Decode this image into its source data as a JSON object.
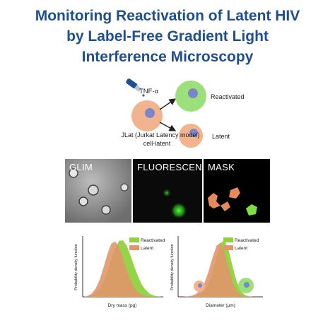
{
  "title": {
    "line1": "Monitoring Reactivation of Latent HIV",
    "line2": "by Label-Free Gradient Light",
    "line3": "Interference Microscopy"
  },
  "schematic": {
    "drug_label": "TNF-α",
    "cell_label_line1": "JLat (Jurkat Latency model)",
    "cell_label_line2": "cell-latent",
    "outcome_reactivated": "Reactivated",
    "outcome_latent": "Latent"
  },
  "panels": [
    {
      "label": "GLIM"
    },
    {
      "label": "FLUORESCENCE"
    },
    {
      "label": "MASK"
    }
  ],
  "colors": {
    "title": "#1f4f8f",
    "reactivated": "#8fd13f",
    "latent": "#e0966a",
    "nucleus": "#7b86c9"
  },
  "chart_data": [
    {
      "type": "area",
      "title": "",
      "xlabel": "Dry mass (pg)",
      "ylabel": "Probability density function",
      "legend_position": "top-right",
      "legend": [
        "Reactivated",
        "Latent"
      ],
      "series": [
        {
          "name": "Reactivated",
          "x": [
            0,
            1,
            2,
            3,
            4,
            5,
            6,
            7,
            8,
            9,
            10,
            11,
            12,
            13,
            14,
            15,
            16,
            17,
            18,
            19,
            20
          ],
          "y": [
            0.0,
            0.01,
            0.03,
            0.07,
            0.14,
            0.26,
            0.44,
            0.66,
            0.86,
            0.99,
            1.0,
            0.9,
            0.72,
            0.52,
            0.34,
            0.2,
            0.11,
            0.05,
            0.02,
            0.01,
            0.0
          ]
        },
        {
          "name": "Latent",
          "x": [
            0,
            1,
            2,
            3,
            4,
            5,
            6,
            7,
            8,
            9,
            10,
            11,
            12,
            13,
            14,
            15,
            16,
            17,
            18,
            19,
            20
          ],
          "y": [
            0.0,
            0.02,
            0.06,
            0.15,
            0.3,
            0.52,
            0.76,
            0.94,
            0.98,
            0.88,
            0.68,
            0.46,
            0.28,
            0.15,
            0.07,
            0.03,
            0.01,
            0.0,
            0.0,
            0.0,
            0.0
          ]
        }
      ]
    },
    {
      "type": "area",
      "title": "",
      "xlabel": "Diameter (µm)",
      "ylabel": "Probability density function",
      "legend_position": "top-right",
      "legend": [
        "Reactivated",
        "Latent"
      ],
      "series": [
        {
          "name": "Reactivated",
          "x": [
            0,
            1,
            2,
            3,
            4,
            5,
            6,
            7,
            8,
            9,
            10,
            11,
            12,
            13,
            14,
            15,
            16,
            17,
            18,
            19,
            20
          ],
          "y": [
            0.0,
            0.0,
            0.0,
            0.01,
            0.02,
            0.05,
            0.11,
            0.22,
            0.42,
            0.7,
            0.95,
            1.0,
            0.82,
            0.52,
            0.26,
            0.1,
            0.03,
            0.01,
            0.0,
            0.0,
            0.0
          ]
        },
        {
          "name": "Latent",
          "x": [
            0,
            1,
            2,
            3,
            4,
            5,
            6,
            7,
            8,
            9,
            10,
            11,
            12,
            13,
            14,
            15,
            16,
            17,
            18,
            19,
            20
          ],
          "y": [
            0.0,
            0.0,
            0.01,
            0.02,
            0.05,
            0.11,
            0.23,
            0.43,
            0.68,
            0.9,
            0.96,
            0.78,
            0.5,
            0.25,
            0.1,
            0.03,
            0.01,
            0.0,
            0.0,
            0.0,
            0.0
          ]
        }
      ]
    }
  ]
}
